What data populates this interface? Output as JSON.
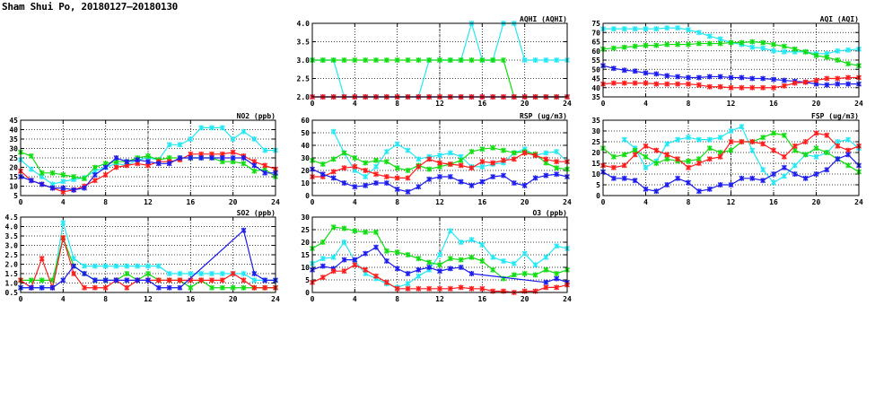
{
  "title": "Sham Shui Po, 20180127–20180130",
  "colors": {
    "cyan": "#22e8f4",
    "green": "#10dd10",
    "red": "#ff1a1a",
    "blue": "#1a1aee"
  },
  "chart_data": [
    {
      "id": "aqhi",
      "type": "line",
      "title": "AQHI (AQHI)",
      "xlim": [
        0,
        24
      ],
      "xticks": [
        0,
        4,
        8,
        12,
        16,
        20,
        24
      ],
      "ylim": [
        2,
        4
      ],
      "yticks": [
        2.0,
        2.5,
        3.0,
        3.5,
        4.0
      ],
      "ydec": 1,
      "grid": true,
      "series": [
        {
          "color": "cyan",
          "values": [
            3,
            3,
            3,
            2,
            2,
            2,
            2,
            2,
            2,
            2,
            2,
            3,
            3,
            3,
            3,
            4,
            3,
            3,
            4,
            4,
            3,
            3,
            3,
            3,
            3
          ]
        },
        {
          "color": "green",
          "values": [
            3,
            3,
            3,
            3,
            3,
            3,
            3,
            3,
            3,
            3,
            3,
            3,
            3,
            3,
            3,
            3,
            3,
            3,
            3,
            2,
            2,
            2,
            2,
            2,
            2
          ]
        },
        {
          "color": "blue",
          "values": [
            2,
            2,
            2,
            2,
            2,
            2,
            2,
            2,
            2,
            2,
            2,
            2,
            2,
            2,
            2,
            2,
            2,
            2,
            2,
            2,
            2,
            2,
            2,
            2,
            2
          ]
        },
        {
          "color": "red",
          "values": [
            2,
            2,
            2,
            2,
            2,
            2,
            2,
            2,
            2,
            2,
            2,
            2,
            2,
            2,
            2,
            2,
            2,
            2,
            2,
            2,
            2,
            2,
            2,
            2,
            2
          ]
        }
      ]
    },
    {
      "id": "aqi",
      "type": "line",
      "title": "AQI (AQI)",
      "xlim": [
        0,
        24
      ],
      "xticks": [
        0,
        4,
        8,
        12,
        16,
        20,
        24
      ],
      "ylim": [
        35,
        75
      ],
      "yticks": [
        35,
        40,
        45,
        50,
        55,
        60,
        65,
        70,
        75
      ],
      "ydec": 0,
      "grid": true,
      "series": [
        {
          "color": "cyan",
          "values": [
            72,
            72,
            72,
            72,
            72,
            72,
            72.5,
            72.5,
            71.5,
            70,
            68,
            66.5,
            64.5,
            63.5,
            62,
            61.5,
            60,
            59.5,
            59.5,
            59.5,
            58.5,
            58.5,
            60,
            60.5,
            61
          ]
        },
        {
          "color": "green",
          "values": [
            61,
            61.5,
            62,
            62.5,
            63,
            63,
            63.5,
            63.5,
            63.5,
            64,
            64,
            64,
            64.5,
            64.5,
            65,
            64.5,
            63.5,
            62.5,
            61,
            59.5,
            57.5,
            56.5,
            55,
            53,
            52
          ]
        },
        {
          "color": "blue",
          "values": [
            52,
            50.5,
            49.5,
            49,
            48,
            47.5,
            46.5,
            46,
            45.5,
            45.5,
            46,
            46,
            45.5,
            45.5,
            45,
            45,
            44.5,
            44,
            43.5,
            43,
            42,
            41.5,
            42,
            42,
            42
          ]
        },
        {
          "color": "red",
          "values": [
            42,
            42.5,
            42.5,
            42.5,
            42.5,
            42,
            42,
            42,
            42,
            41.5,
            40.5,
            40.5,
            40,
            40,
            40,
            40,
            40,
            41,
            42.5,
            43,
            44,
            45,
            45,
            45.5,
            45.5
          ]
        }
      ]
    },
    {
      "id": "no2",
      "type": "line",
      "title": "NO2 (ppb)",
      "xlim": [
        0,
        24
      ],
      "xticks": [
        0,
        4,
        8,
        12,
        16,
        20,
        24
      ],
      "ylim": [
        5,
        45
      ],
      "yticks": [
        5,
        10,
        15,
        20,
        25,
        30,
        35,
        40,
        45
      ],
      "ydec": 0,
      "grid": true,
      "series": [
        {
          "color": "cyan",
          "values": [
            24,
            19,
            15,
            11,
            12.5,
            13.5,
            14.5,
            18,
            20,
            22,
            21,
            24,
            25,
            24,
            32,
            32,
            35,
            41,
            41,
            41,
            35,
            39,
            35,
            29,
            29
          ]
        },
        {
          "color": "green",
          "values": [
            28,
            26,
            17,
            17,
            16,
            15,
            14,
            20,
            22,
            23,
            23,
            25,
            26,
            24,
            25,
            25,
            25,
            25,
            25,
            23,
            23,
            22,
            18,
            19,
            15
          ]
        },
        {
          "color": "red",
          "values": [
            18,
            13,
            11,
            9,
            7,
            8,
            10,
            13,
            16,
            20,
            21,
            22,
            21,
            23,
            23,
            24,
            27,
            27,
            27,
            27,
            28,
            26,
            23,
            21,
            19
          ]
        },
        {
          "color": "blue",
          "values": [
            15,
            13,
            11,
            9,
            9,
            8,
            9,
            16,
            20,
            25,
            23,
            24,
            23,
            22,
            22,
            25,
            25,
            25,
            25,
            25,
            25,
            25,
            21,
            17,
            17
          ]
        }
      ]
    },
    {
      "id": "rsp",
      "type": "line",
      "title": "RSP (ug/m3)",
      "xlim": [
        0,
        24
      ],
      "xticks": [
        0,
        4,
        8,
        12,
        16,
        20,
        24
      ],
      "ylim": [
        0,
        60
      ],
      "yticks": [
        0,
        10,
        20,
        30,
        40,
        50,
        60
      ],
      "ydec": 0,
      "grid": true,
      "series": [
        {
          "color": "cyan",
          "values": [
            null,
            null,
            51,
            34,
            20,
            15,
            23,
            35,
            41,
            36,
            29,
            31,
            32,
            34,
            31,
            23,
            23,
            25,
            26,
            34,
            37,
            32,
            34,
            35,
            27
          ]
        },
        {
          "color": "green",
          "values": [
            28,
            25,
            29,
            34,
            30,
            26,
            28,
            27,
            22,
            20,
            24,
            21,
            23,
            25,
            28,
            35,
            37,
            38,
            36,
            34,
            35,
            33,
            26,
            22,
            21
          ]
        },
        {
          "color": "red",
          "values": [
            15,
            15,
            19,
            22,
            23,
            20,
            17,
            15,
            14,
            14,
            23,
            29,
            26,
            25,
            24,
            22,
            27,
            26,
            28,
            29,
            34,
            32,
            29,
            27,
            27
          ]
        },
        {
          "color": "blue",
          "values": [
            21,
            17,
            14,
            10,
            7,
            8,
            10,
            10,
            5,
            3,
            7,
            13,
            15,
            15,
            11,
            8,
            11,
            15,
            16,
            10,
            8,
            14,
            16,
            17,
            15
          ]
        }
      ]
    },
    {
      "id": "fsp",
      "type": "line",
      "title": "FSP (ug/m3)",
      "xlim": [
        0,
        24
      ],
      "xticks": [
        0,
        4,
        8,
        12,
        16,
        20,
        24
      ],
      "ylim": [
        0,
        35
      ],
      "yticks": [
        0,
        5,
        10,
        15,
        20,
        25,
        30,
        35
      ],
      "ydec": 0,
      "grid": true,
      "series": [
        {
          "color": "cyan",
          "values": [
            null,
            null,
            26,
            22,
            13,
            16,
            24,
            26,
            27,
            26,
            26,
            27,
            30,
            32,
            21,
            12,
            6,
            9,
            14,
            19,
            18,
            20,
            25,
            26,
            22
          ]
        },
        {
          "color": "green",
          "values": [
            22,
            18,
            19,
            21,
            18,
            15,
            17,
            16,
            16,
            17,
            22,
            20,
            21,
            25,
            25,
            27,
            29,
            28,
            21,
            19,
            22,
            20,
            17,
            14,
            11
          ]
        },
        {
          "color": "red",
          "values": [
            14,
            13,
            14,
            19,
            23,
            21,
            19,
            17,
            13,
            15,
            17,
            18,
            25,
            25,
            25,
            24,
            21,
            18,
            23,
            25,
            29,
            28,
            23,
            21,
            23
          ]
        },
        {
          "color": "blue",
          "values": [
            11,
            8,
            8,
            7,
            3,
            2,
            5,
            8,
            6,
            2,
            3,
            5,
            5,
            8,
            8,
            7,
            10,
            13,
            10,
            8,
            10,
            12,
            17,
            19,
            14
          ]
        }
      ]
    },
    {
      "id": "so2",
      "type": "line",
      "title": "SO2 (ppb)",
      "xlim": [
        0,
        24
      ],
      "xticks": [
        0,
        4,
        8,
        12,
        16,
        20,
        24
      ],
      "ylim": [
        0.5,
        4.5
      ],
      "yticks": [
        0.5,
        1.0,
        1.5,
        2.0,
        2.5,
        3.0,
        3.5,
        4.0,
        4.5
      ],
      "ydec": 1,
      "grid": true,
      "series": [
        {
          "color": "cyan",
          "values": [
            0.75,
            0.75,
            0.75,
            0.75,
            4.2,
            2.3,
            1.9,
            1.9,
            1.9,
            1.9,
            1.9,
            1.9,
            1.9,
            1.9,
            1.5,
            1.5,
            1.5,
            1.5,
            1.5,
            1.5,
            1.5,
            1.5,
            1.15,
            1.15,
            1.15
          ]
        },
        {
          "color": "green",
          "values": [
            1.15,
            1.15,
            1.15,
            1.15,
            3.4,
            1.9,
            1.5,
            1.15,
            1.15,
            1.15,
            1.5,
            1.15,
            1.5,
            1.15,
            1.15,
            1.15,
            0.75,
            1.15,
            0.75,
            0.75,
            0.75,
            0.75,
            0.75,
            0.75,
            0.75
          ]
        },
        {
          "color": "red",
          "values": [
            1.15,
            0.75,
            2.3,
            0.75,
            3.4,
            1.5,
            0.75,
            0.75,
            0.75,
            1.15,
            0.75,
            1.15,
            1.15,
            1.15,
            1.15,
            1.15,
            1.15,
            1.15,
            1.15,
            1.15,
            1.5,
            1.15,
            0.75,
            0.75,
            0.75
          ]
        },
        {
          "color": "blue",
          "values": [
            0.75,
            0.75,
            0.75,
            0.75,
            1.15,
            1.9,
            1.5,
            1.15,
            1.15,
            1.15,
            1.15,
            1.15,
            1.15,
            0.75,
            0.75,
            0.75,
            null,
            null,
            null,
            null,
            null,
            3.8,
            1.5,
            1.15,
            1.15
          ]
        }
      ]
    },
    {
      "id": "o3",
      "type": "line",
      "title": "O3 (ppb)",
      "xlim": [
        0,
        24
      ],
      "xticks": [
        0,
        4,
        8,
        12,
        16,
        20,
        24
      ],
      "ylim": [
        0,
        30
      ],
      "yticks": [
        0,
        5,
        10,
        15,
        20,
        25,
        30
      ],
      "ydec": 0,
      "grid": true,
      "series": [
        {
          "color": "cyan",
          "values": [
            11.5,
            13.5,
            14,
            20,
            12.5,
            7.5,
            5.5,
            3.5,
            2,
            3.5,
            6.5,
            9,
            15,
            24.5,
            20,
            21,
            19,
            14,
            12.5,
            11.5,
            15.5,
            11,
            14,
            18.5,
            17.5
          ]
        },
        {
          "color": "green",
          "values": [
            17.5,
            20,
            26,
            25.5,
            24.5,
            24,
            24,
            16.5,
            16,
            15,
            13.5,
            12,
            11,
            13.5,
            13,
            14,
            12.5,
            9,
            5.5,
            7,
            7.5,
            7,
            9,
            7.5,
            9
          ]
        },
        {
          "color": "blue",
          "values": [
            9,
            10.5,
            9.5,
            13,
            13,
            15.5,
            18,
            12.5,
            9.5,
            7.5,
            9,
            10,
            8.5,
            9.5,
            10,
            7.5,
            null,
            null,
            null,
            null,
            null,
            null,
            4,
            5.5,
            4
          ]
        },
        {
          "color": "red",
          "values": [
            4,
            6,
            8.5,
            8.5,
            11,
            9,
            6.5,
            4,
            1.5,
            1.5,
            1.5,
            1.5,
            1.5,
            1.5,
            2,
            1.5,
            1.5,
            0.5,
            0.5,
            0,
            0.5,
            0.5,
            2,
            2,
            3
          ]
        }
      ]
    }
  ]
}
